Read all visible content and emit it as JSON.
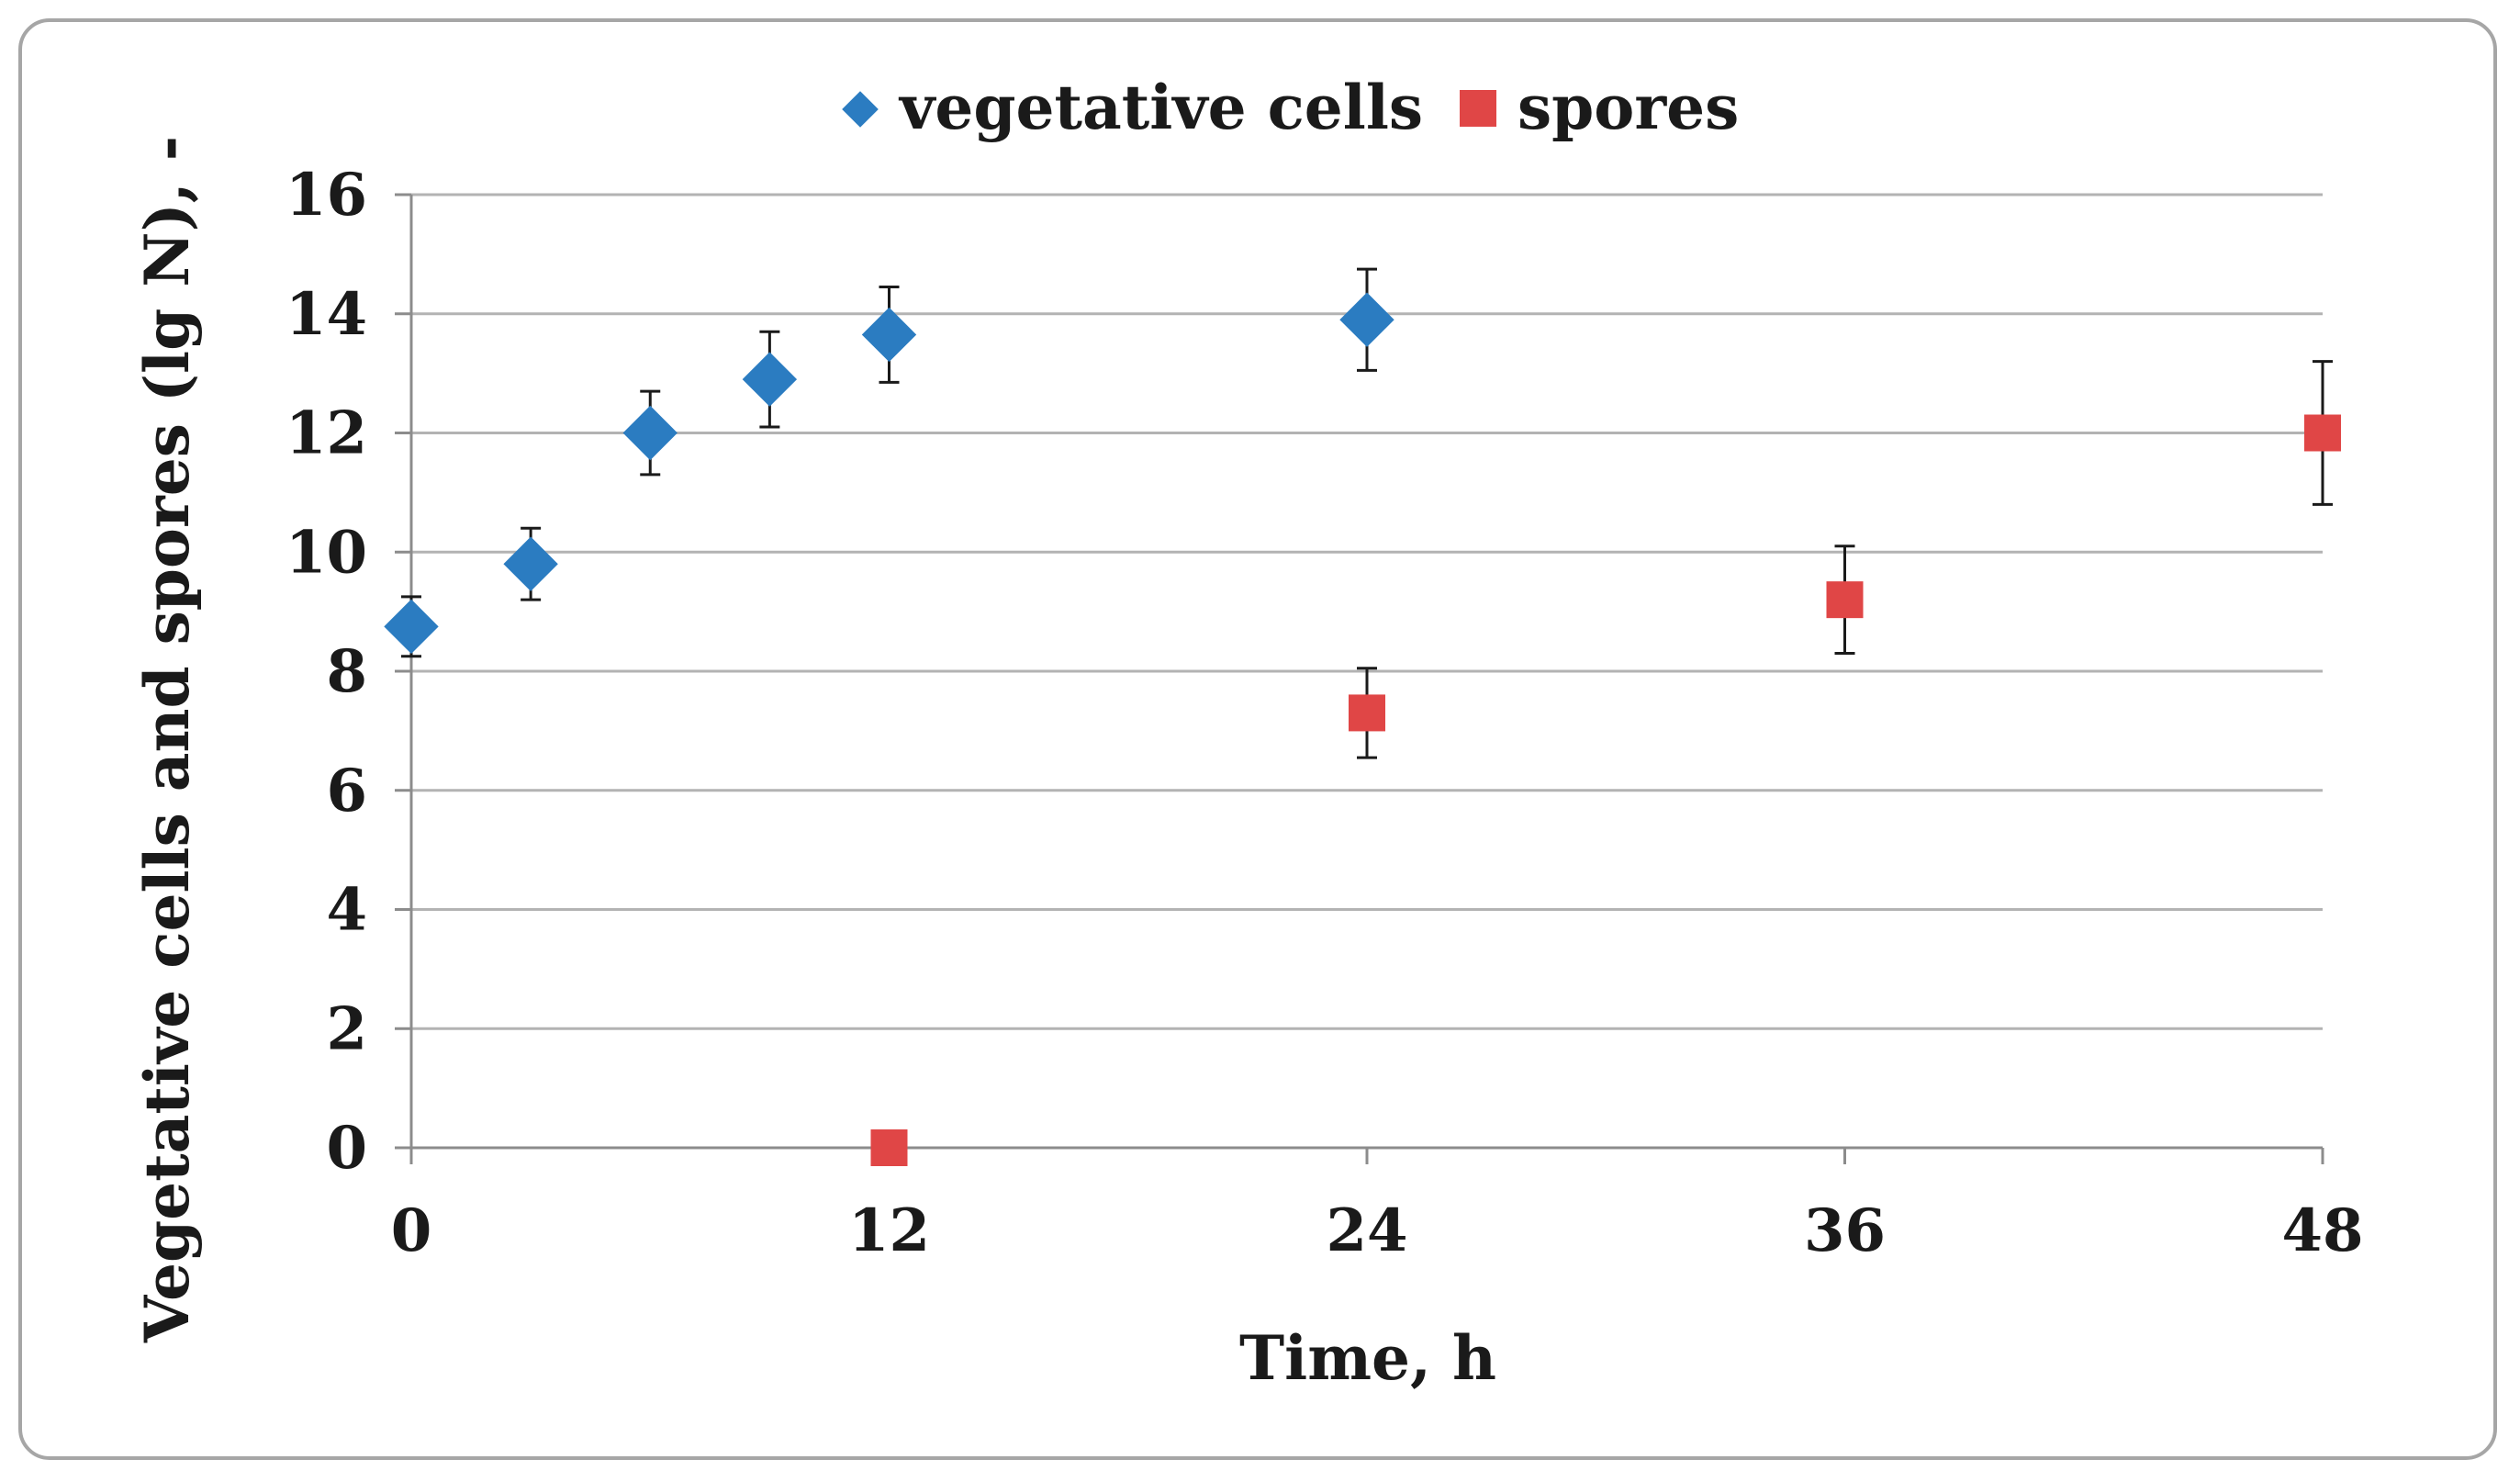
{
  "chart_data": {
    "type": "scatter",
    "title": "",
    "xlabel": "Time, h",
    "ylabel": "Vegetative cells and spores (lg N), -",
    "xlim": [
      0,
      48
    ],
    "ylim": [
      0,
      16
    ],
    "x_ticks": [
      "0",
      "12",
      "24",
      "36",
      "48"
    ],
    "y_ticks": [
      "0",
      "2",
      "4",
      "6",
      "8",
      "10",
      "12",
      "14",
      "16"
    ],
    "grid": "horizontal",
    "legend_position": "top-center",
    "series": [
      {
        "name": "vegetative cells",
        "marker": "diamond",
        "color": "#2b7cc1",
        "points": [
          {
            "x": 0,
            "y": 8.75,
            "err": 0.5
          },
          {
            "x": 3,
            "y": 9.8,
            "err": 0.6
          },
          {
            "x": 6,
            "y": 12.0,
            "err": 0.7
          },
          {
            "x": 9,
            "y": 12.9,
            "err": 0.8
          },
          {
            "x": 12,
            "y": 13.65,
            "err": 0.8
          },
          {
            "x": 24,
            "y": 13.9,
            "err": 0.85
          }
        ]
      },
      {
        "name": "spores",
        "marker": "square",
        "color": "#e04646",
        "points": [
          {
            "x": 12,
            "y": 0,
            "err": 0
          },
          {
            "x": 24,
            "y": 7.3,
            "err": 0.75
          },
          {
            "x": 36,
            "y": 9.2,
            "err": 0.9
          },
          {
            "x": 48,
            "y": 12.0,
            "err": 1.2
          }
        ]
      }
    ]
  }
}
